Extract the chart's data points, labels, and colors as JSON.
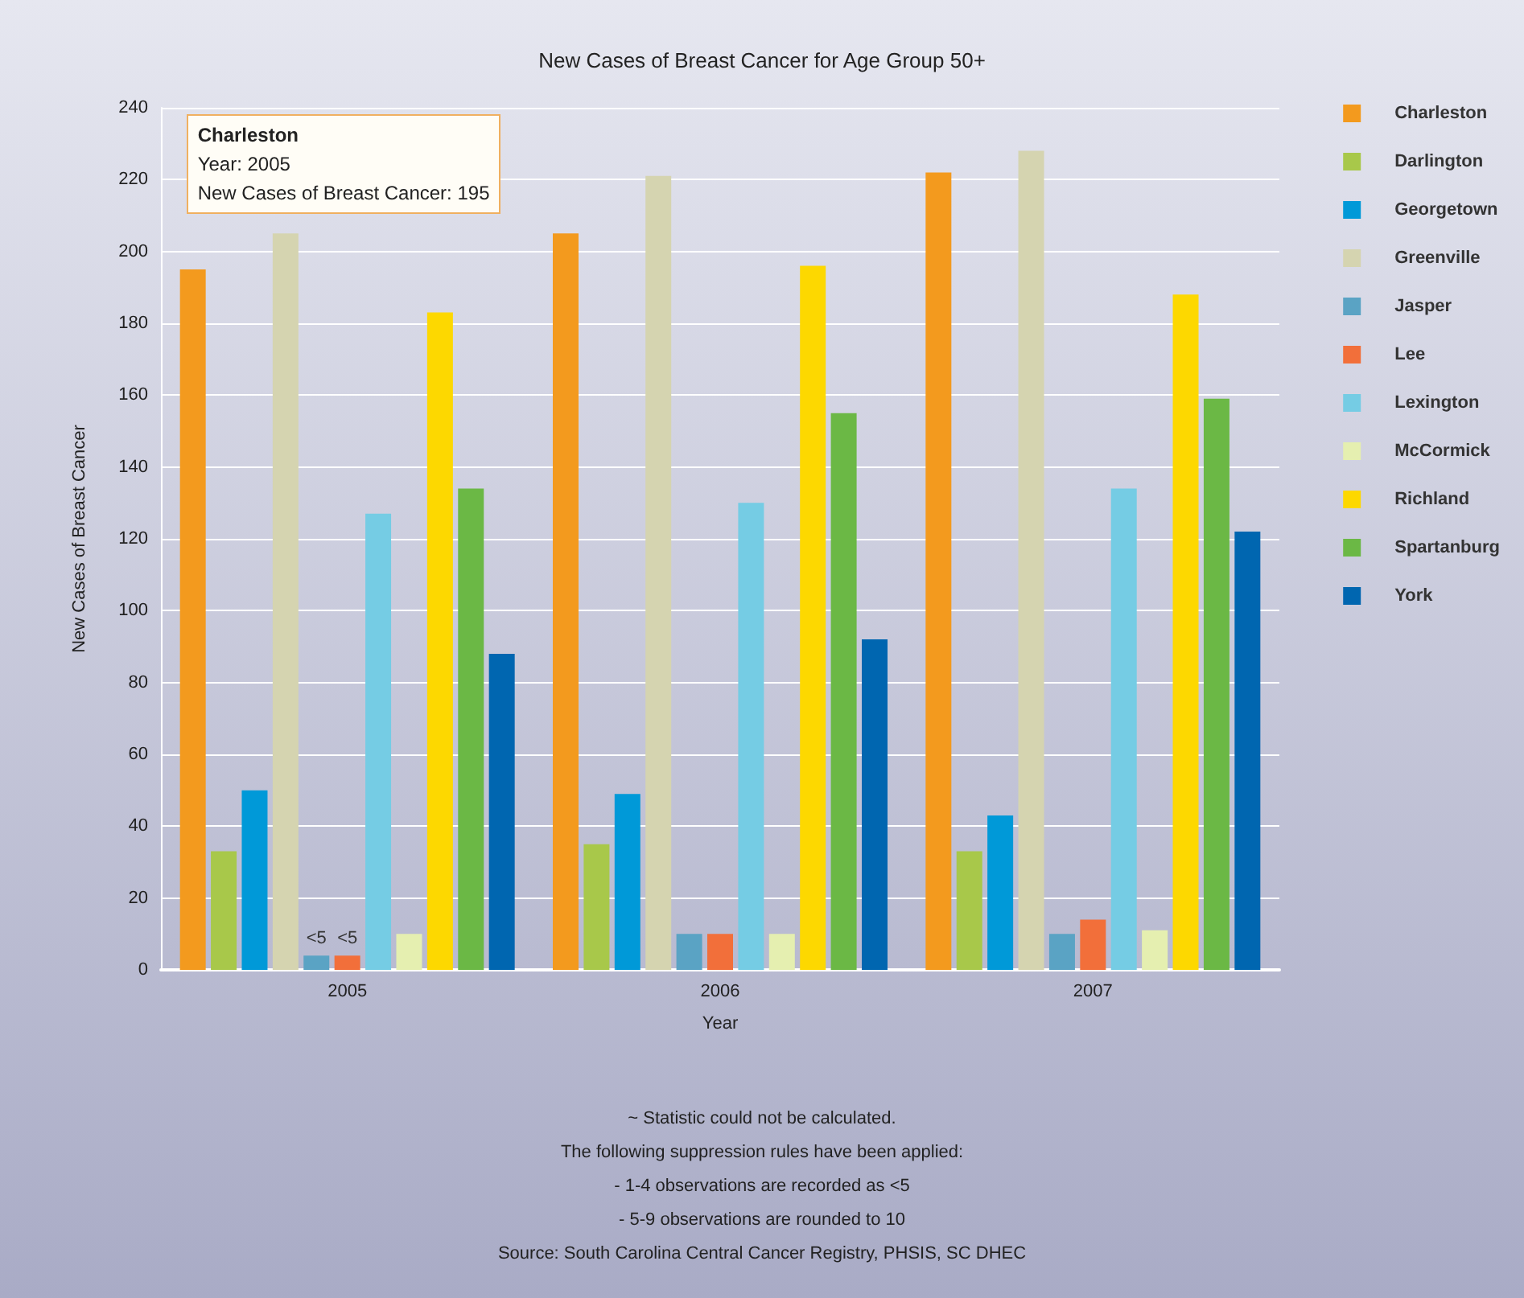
{
  "chart_data": {
    "type": "bar",
    "title": "New Cases of Breast Cancer for Age Group 50+",
    "xlabel": "Year",
    "ylabel": "New Cases of Breast Cancer",
    "categories": [
      "2005",
      "2006",
      "2007"
    ],
    "series": [
      {
        "name": "Charleston",
        "color": "#f39a1e",
        "values": [
          195,
          205,
          222
        ]
      },
      {
        "name": "Darlington",
        "color": "#a8c84a",
        "values": [
          33,
          35,
          33
        ]
      },
      {
        "name": "Georgetown",
        "color": "#0099d8",
        "values": [
          50,
          49,
          43
        ]
      },
      {
        "name": "Greenville",
        "color": "#d5d4b0",
        "values": [
          205,
          221,
          228
        ]
      },
      {
        "name": "Jasper",
        "color": "#5aa3c4",
        "values": [
          4,
          10,
          10
        ],
        "value_labels": [
          "<5",
          null,
          null
        ]
      },
      {
        "name": "Lee",
        "color": "#f26f3a",
        "values": [
          4,
          10,
          14
        ],
        "value_labels": [
          "<5",
          null,
          null
        ]
      },
      {
        "name": "Lexington",
        "color": "#75cce4",
        "values": [
          127,
          130,
          134
        ]
      },
      {
        "name": "McCormick",
        "color": "#e5efb0",
        "values": [
          10,
          10,
          11
        ]
      },
      {
        "name": "Richland",
        "color": "#fdd800",
        "values": [
          183,
          196,
          188
        ]
      },
      {
        "name": "Spartanburg",
        "color": "#6bb845",
        "values": [
          134,
          155,
          159
        ]
      },
      {
        "name": "York",
        "color": "#0066b0",
        "values": [
          88,
          92,
          122
        ]
      }
    ],
    "ylim": [
      0,
      240
    ],
    "yticks": [
      0,
      20,
      40,
      60,
      80,
      100,
      120,
      140,
      160,
      180,
      200,
      220,
      240
    ],
    "grid": "y",
    "legend": "right",
    "annotations": [
      "Charleston\nYear: 2005\nNew Cases of Breast Cancer: 195",
      "~ Statistic could not be calculated.",
      "The following suppression rules have been applied:",
      "- 1-4 observations are recorded as <5",
      "- 5-9 observations are rounded to 10",
      "Source: South Carolina Central Cancer Registry, PHSIS, SC DHEC"
    ]
  }
}
